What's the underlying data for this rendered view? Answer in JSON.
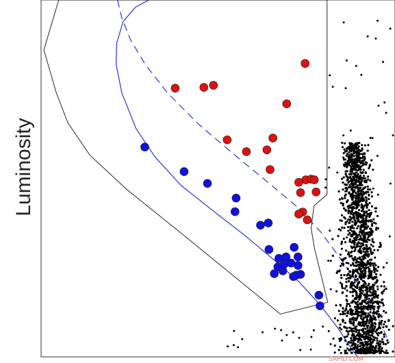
{
  "chart_data": {
    "type": "scatter",
    "title": "",
    "xlabel": "",
    "ylabel": "Luminosity",
    "grid": false,
    "legend": "none",
    "xlim": [
      0,
      100
    ],
    "ylim": [
      0,
      100
    ],
    "colors": {
      "red": "#dd1111",
      "blue": "#1111dd",
      "black": "#000000",
      "curve": "#3344cc",
      "region": "#222222"
    },
    "series": [
      {
        "color": "red",
        "points": [
          [
            74.6,
            82.2
          ],
          [
            37.9,
            75.3
          ],
          [
            46.0,
            75.5
          ],
          [
            48.7,
            76.1
          ],
          [
            69.4,
            70.9
          ],
          [
            52.6,
            60.8
          ],
          [
            65.5,
            61.3
          ],
          [
            58.0,
            57.5
          ],
          [
            63.8,
            58.0
          ],
          [
            64.7,
            52.5
          ],
          [
            74.8,
            49.6
          ],
          [
            76.3,
            49.8
          ],
          [
            77.2,
            49.6
          ],
          [
            72.8,
            48.9
          ],
          [
            73.3,
            46.0
          ],
          [
            77.7,
            46.2
          ],
          [
            73.9,
            40.6
          ],
          [
            72.8,
            40.0
          ],
          [
            75.2,
            38.4
          ]
        ]
      },
      {
        "color": "blue",
        "points": [
          [
            29.3,
            58.8
          ],
          [
            40.4,
            51.9
          ],
          [
            47.0,
            48.6
          ],
          [
            55.1,
            44.5
          ],
          [
            54.8,
            40.7
          ],
          [
            62.0,
            36.9
          ],
          [
            64.2,
            37.5
          ],
          [
            64.4,
            30.1
          ],
          [
            71.5,
            30.7
          ],
          [
            67.2,
            27.6
          ],
          [
            69.2,
            28.0
          ],
          [
            72.6,
            28.0
          ],
          [
            68.7,
            26.0
          ],
          [
            70.6,
            26.3
          ],
          [
            66.9,
            25.2
          ],
          [
            72.6,
            25.6
          ],
          [
            65.9,
            23.3
          ],
          [
            68.3,
            24.1
          ],
          [
            73.3,
            23.1
          ],
          [
            72.1,
            22.9
          ],
          [
            71.3,
            22.5
          ],
          [
            78.5,
            17.3
          ],
          [
            78.8,
            14.3
          ]
        ]
      }
    ],
    "curves": [
      {
        "style": "solid",
        "points": [
          [
            30.4,
            100.0
          ],
          [
            26.7,
            98.0
          ],
          [
            23.2,
            94.0
          ],
          [
            21.4,
            88.0
          ],
          [
            21.2,
            82.0
          ],
          [
            22.8,
            74.0
          ],
          [
            26.8,
            64.0
          ],
          [
            32.2,
            56.0
          ],
          [
            39.6,
            48.0
          ],
          [
            48.5,
            41.0
          ],
          [
            57.6,
            34.0
          ],
          [
            66.0,
            27.0
          ],
          [
            72.9,
            21.0
          ],
          [
            78.9,
            14.5
          ],
          [
            83.9,
            8.0
          ],
          [
            87.9,
            2.0
          ],
          [
            89.4,
            0.0
          ]
        ]
      },
      {
        "style": "dashed",
        "points": [
          [
            21.6,
            100.0
          ],
          [
            22.8,
            95.0
          ],
          [
            25.2,
            89.0
          ],
          [
            29.4,
            82.0
          ],
          [
            35.7,
            74.0
          ],
          [
            44.7,
            65.0
          ],
          [
            55.4,
            56.0
          ],
          [
            65.2,
            48.0
          ],
          [
            72.4,
            42.0
          ],
          [
            79.0,
            35.0
          ],
          [
            85.0,
            27.0
          ],
          [
            90.6,
            19.0
          ],
          [
            95.2,
            11.0
          ],
          [
            98.4,
            4.0
          ]
        ]
      },
      {
        "style": "region",
        "points": [
          [
            5.0,
            100.0
          ],
          [
            80.8,
            100.0
          ],
          [
            80.8,
            45.5
          ],
          [
            77.1,
            42.3
          ],
          [
            76.3,
            36.0
          ],
          [
            77.3,
            30.2
          ],
          [
            79.2,
            22.5
          ],
          [
            81.0,
            15.3
          ],
          [
            67.6,
            12.0
          ],
          [
            40.4,
            34.0
          ],
          [
            24.1,
            47.0
          ],
          [
            13.8,
            56.5
          ],
          [
            7.6,
            65.5
          ],
          [
            4.3,
            74.0
          ],
          [
            0.8,
            86.0
          ],
          [
            5.0,
            100.0
          ]
        ]
      }
    ]
  },
  "watermark": "SAPID.COM"
}
